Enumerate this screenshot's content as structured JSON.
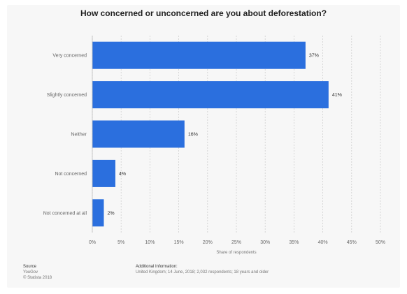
{
  "chart_data": {
    "type": "bar",
    "orientation": "horizontal",
    "title": "How concerned or unconcerned are you about deforestation?",
    "categories": [
      "Very concerned",
      "Slightly concerned",
      "Neither",
      "Not concerned",
      "Not concerned at all"
    ],
    "values": [
      37,
      41,
      16,
      4,
      2
    ],
    "value_labels": [
      "37%",
      "41%",
      "16%",
      "4%",
      "2%"
    ],
    "xlabel": "Share of respondents",
    "ylabel": "",
    "xlim": [
      0,
      50
    ],
    "x_ticks": [
      0,
      5,
      10,
      15,
      20,
      25,
      30,
      35,
      40,
      45,
      50
    ],
    "x_tick_labels": [
      "0%",
      "5%",
      "10%",
      "15%",
      "20%",
      "25%",
      "30%",
      "35%",
      "40%",
      "45%",
      "50%"
    ],
    "grid": "vertical dashed",
    "bar_color": "#2b6fde"
  },
  "footer": {
    "source_heading": "Source",
    "source_lines": [
      "YouGov",
      "© Statista 2018"
    ],
    "info_heading": "Additional Information:",
    "info_line": "United Kingdom; 14 June, 2018; 2,032 respondents; 18 years and older"
  }
}
